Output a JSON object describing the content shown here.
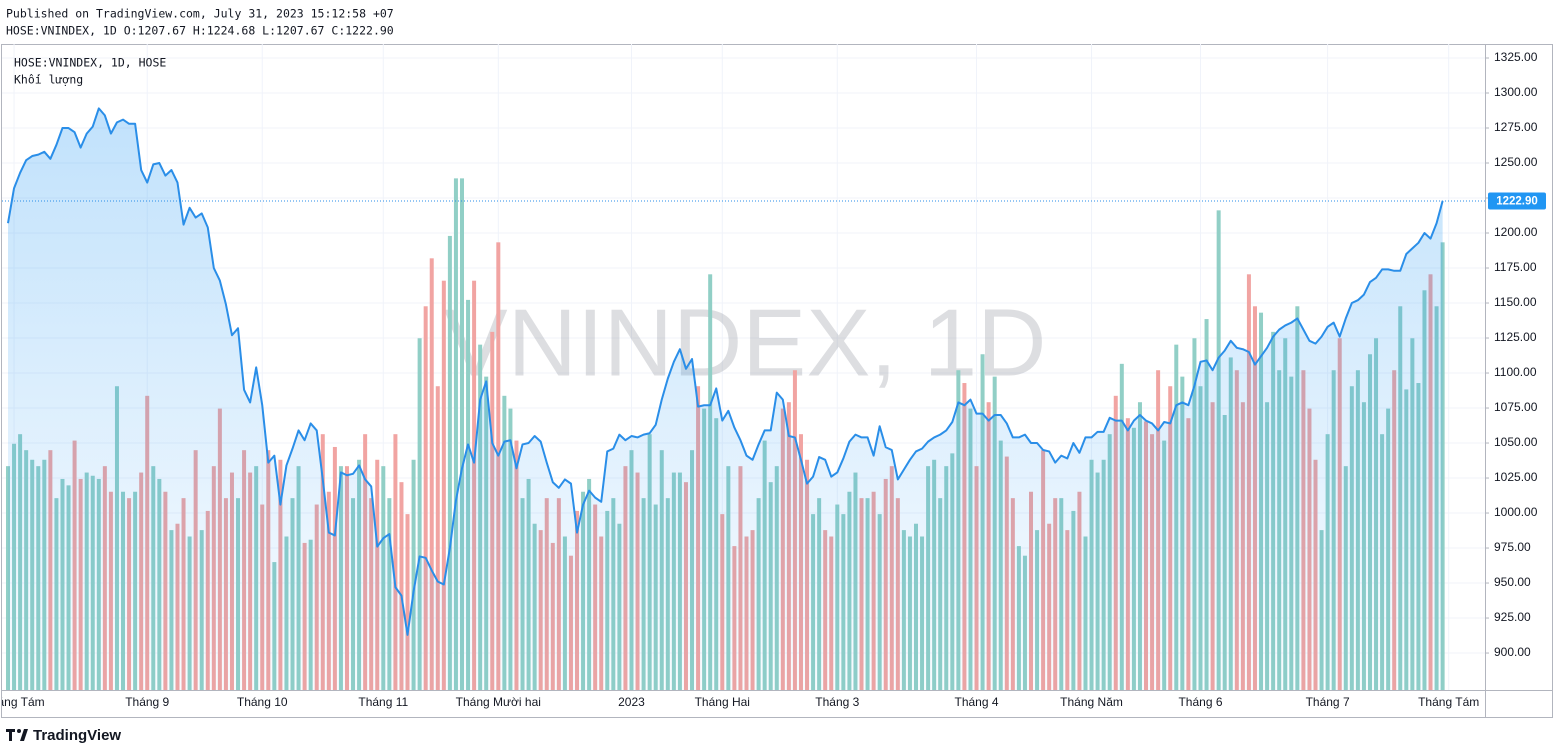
{
  "header": {
    "published": "Published on TradingView.com, July 31, 2023 15:12:58 +07",
    "ohlc": "HOSE:VNINDEX, 1D O:1207.67 H:1224.68 L:1207.67 C:1222.90"
  },
  "chart_data": {
    "type": "line",
    "symbol": "HOSE:VNINDEX, 1D, HOSE",
    "watermark": "VNINDEX, 1D",
    "color": "#2a8ee8",
    "grid": true,
    "values": [
      1207,
      1232,
      1243,
      1252,
      1255,
      1256,
      1258,
      1253,
      1263,
      1275,
      1275,
      1272,
      1261,
      1271,
      1276,
      1289,
      1284,
      1271,
      1279,
      1281,
      1278,
      1278,
      1245,
      1236,
      1249,
      1250,
      1241,
      1245,
      1236,
      1206,
      1218,
      1211,
      1214,
      1204,
      1175,
      1166,
      1149,
      1127,
      1132,
      1088,
      1079,
      1104,
      1077,
      1036,
      1041,
      1006,
      1034,
      1046,
      1059,
      1052,
      1064,
      1059,
      1024,
      986,
      984,
      1029,
      1027,
      1028,
      1034,
      1024,
      1019,
      976,
      982,
      985,
      947,
      941,
      913,
      944,
      969,
      968,
      959,
      951,
      949,
      975,
      1009,
      1032,
      1049,
      1036,
      1081,
      1094,
      1050,
      1041,
      1051,
      1052,
      1032,
      1049,
      1050,
      1055,
      1051,
      1036,
      1022,
      1018,
      1024,
      1021,
      986,
      1006,
      1016,
      1011,
      1008,
      1044,
      1046,
      1056,
      1052,
      1055,
      1054,
      1056,
      1057,
      1063,
      1081,
      1096,
      1108,
      1117,
      1103,
      1110,
      1076,
      1077,
      1077,
      1089,
      1066,
      1073,
      1061,
      1052,
      1041,
      1038,
      1049,
      1059,
      1059,
      1086,
      1081,
      1055,
      1054,
      1038,
      1021,
      1026,
      1040,
      1038,
      1026,
      1029,
      1039,
      1051,
      1056,
      1054,
      1054,
      1041,
      1062,
      1047,
      1045,
      1024,
      1031,
      1038,
      1044,
      1046,
      1051,
      1054,
      1056,
      1059,
      1065,
      1079,
      1077,
      1081,
      1071,
      1071,
      1066,
      1070,
      1070,
      1064,
      1054,
      1054,
      1056,
      1050,
      1050,
      1045,
      1044,
      1036,
      1041,
      1039,
      1050,
      1043,
      1054,
      1054,
      1058,
      1058,
      1068,
      1066,
      1066,
      1059,
      1066,
      1070,
      1066,
      1064,
      1059,
      1065,
      1064,
      1077,
      1079,
      1077,
      1091,
      1108,
      1109,
      1102,
      1111,
      1116,
      1123,
      1118,
      1117,
      1115,
      1106,
      1112,
      1118,
      1126,
      1131,
      1134,
      1136,
      1139,
      1131,
      1123,
      1121,
      1126,
      1133,
      1136,
      1126,
      1139,
      1150,
      1152,
      1156,
      1165,
      1168,
      1174,
      1174,
      1173,
      1173,
      1185,
      1189,
      1193,
      1200,
      1196,
      1207,
      1222.9
    ],
    "volume": {
      "name": "Khối lượng",
      "up_color": "#91cfc6",
      "down_color": "#f1a4a2",
      "lim": [
        0,
        200
      ],
      "values": [
        70,
        77,
        80,
        75,
        72,
        70,
        72,
        75,
        60,
        66,
        64,
        78,
        66,
        68,
        67,
        66,
        70,
        62,
        95,
        62,
        60,
        62,
        68,
        92,
        70,
        66,
        62,
        50,
        52,
        60,
        48,
        75,
        50,
        56,
        70,
        88,
        60,
        68,
        60,
        75,
        68,
        70,
        58,
        75,
        40,
        72,
        48,
        60,
        70,
        46,
        47,
        58,
        80,
        62,
        76,
        70,
        70,
        60,
        72,
        80,
        60,
        72,
        70,
        60,
        80,
        65,
        55,
        72,
        110,
        120,
        135,
        95,
        128,
        142,
        160,
        160,
        122,
        128,
        108,
        98,
        112,
        140,
        92,
        88,
        78,
        60,
        66,
        52,
        50,
        60,
        46,
        60,
        48,
        42,
        56,
        62,
        66,
        58,
        48,
        56,
        60,
        52,
        70,
        75,
        68,
        60,
        80,
        58,
        75,
        60,
        68,
        68,
        65,
        75,
        95,
        88,
        130,
        85,
        55,
        70,
        45,
        70,
        48,
        50,
        60,
        78,
        65,
        70,
        88,
        90,
        100,
        80,
        72,
        55,
        60,
        50,
        48,
        58,
        55,
        62,
        68,
        60,
        60,
        62,
        55,
        66,
        70,
        60,
        50,
        48,
        52,
        48,
        70,
        72,
        60,
        70,
        74,
        100,
        96,
        88,
        70,
        105,
        90,
        98,
        78,
        73,
        60,
        45,
        42,
        62,
        50,
        75,
        52,
        60,
        60,
        50,
        56,
        62,
        48,
        72,
        68,
        72,
        80,
        92,
        102,
        85,
        82,
        90,
        84,
        80,
        100,
        78,
        95,
        108,
        98,
        85,
        110,
        95,
        116,
        90,
        150,
        86,
        104,
        100,
        90,
        130,
        120,
        118,
        90,
        112,
        100,
        110,
        98,
        120,
        100,
        88,
        72,
        50,
        80,
        100,
        110,
        70,
        95,
        100,
        90,
        105,
        110,
        80,
        88,
        100,
        120,
        94,
        110,
        96,
        125,
        130,
        120,
        140
      ]
    },
    "last_price": {
      "value": 1222.9,
      "label": "1222.90"
    },
    "xlim": [
      0,
      244
    ],
    "ylim": [
      873.6,
      1335
    ],
    "yticks": [
      {
        "value": 900,
        "label": "900.00"
      },
      {
        "value": 925,
        "label": "925.00"
      },
      {
        "value": 950,
        "label": "950.00"
      },
      {
        "value": 975,
        "label": "975.00"
      },
      {
        "value": 1000,
        "label": "1000.00"
      },
      {
        "value": 1025,
        "label": "1025.00"
      },
      {
        "value": 1050,
        "label": "1050.00"
      },
      {
        "value": 1075,
        "label": "1075.00"
      },
      {
        "value": 1100,
        "label": "1100.00"
      },
      {
        "value": 1125,
        "label": "1125.00"
      },
      {
        "value": 1150,
        "label": "1150.00"
      },
      {
        "value": 1175,
        "label": "1175.00"
      },
      {
        "value": 1200,
        "label": "1200.00"
      },
      {
        "value": 1225,
        "label": "1225.00"
      },
      {
        "value": 1250,
        "label": "1250.00"
      },
      {
        "value": 1275,
        "label": "1275.00"
      },
      {
        "value": 1300,
        "label": "1300.00"
      },
      {
        "value": 1325,
        "label": "1325.00"
      }
    ],
    "xticks": [
      {
        "value": 1,
        "label": "Tháng Tám"
      },
      {
        "value": 23,
        "label": "Tháng 9"
      },
      {
        "value": 42,
        "label": "Tháng 10"
      },
      {
        "value": 62,
        "label": "Tháng 11"
      },
      {
        "value": 81,
        "label": "Tháng Mười hai"
      },
      {
        "value": 103,
        "label": "2023"
      },
      {
        "value": 118,
        "label": "Tháng Hai"
      },
      {
        "value": 137,
        "label": "Tháng 3"
      },
      {
        "value": 160,
        "label": "Tháng 4"
      },
      {
        "value": 179,
        "label": "Tháng Năm"
      },
      {
        "value": 197,
        "label": "Tháng 6"
      },
      {
        "value": 218,
        "label": "Tháng 7"
      },
      {
        "value": 238,
        "label": "Tháng Tám"
      }
    ]
  },
  "footer": {
    "brand": "TradingView"
  }
}
